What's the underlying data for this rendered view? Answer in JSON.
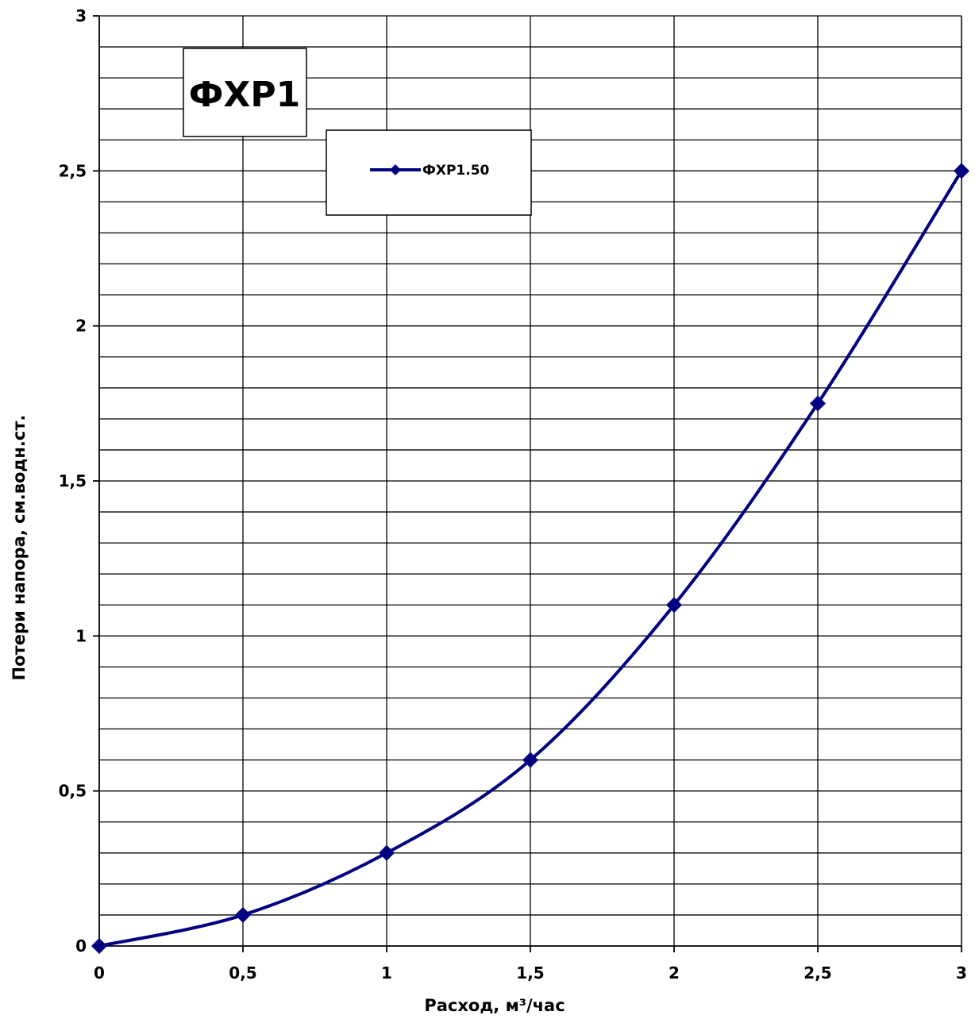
{
  "chart_data": {
    "type": "line",
    "title": "ФХР1",
    "xlabel": "Расход, м³/час",
    "ylabel": "Потери напора, см.водн.ст.",
    "x": [
      0,
      0.5,
      1,
      1.5,
      2,
      2.5,
      3
    ],
    "series": [
      {
        "name": "ФХР1.50",
        "values": [
          0,
          0.1,
          0.3,
          0.6,
          1.1,
          1.75,
          2.5
        ],
        "color": "#000080",
        "marker": "diamond",
        "smooth": true
      }
    ],
    "xlim": [
      0,
      3
    ],
    "ylim": [
      0,
      3
    ],
    "x_ticks": [
      0,
      0.5,
      1,
      1.5,
      2,
      2.5,
      3
    ],
    "x_tick_labels": [
      "0",
      "0,5",
      "1",
      "1,5",
      "2",
      "2,5",
      "3"
    ],
    "y_ticks": [
      0,
      0.5,
      1,
      1.5,
      2,
      2.5,
      3
    ],
    "y_tick_labels": [
      "0",
      "0,5",
      "1",
      "1,5",
      "2",
      "2,5",
      "3"
    ],
    "y_minor_step": 0.1,
    "grid": true,
    "legend_position": "top-center"
  }
}
